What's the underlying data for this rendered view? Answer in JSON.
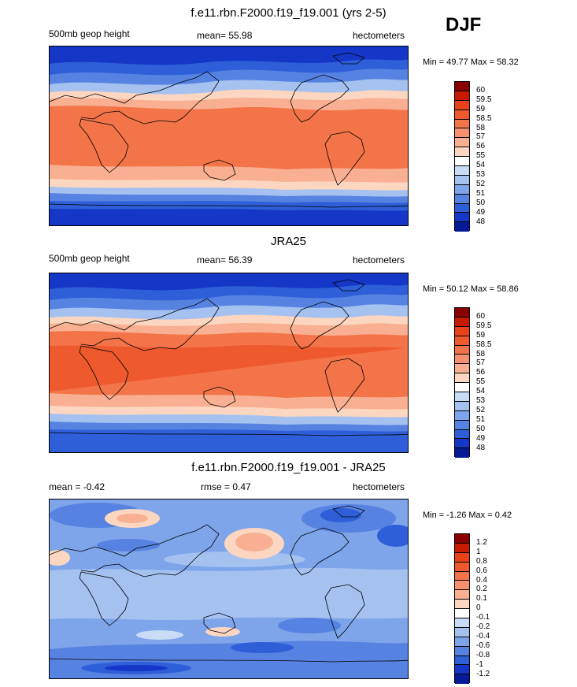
{
  "season": "DJF",
  "panels": [
    {
      "id": "model",
      "title": "f.e11.rbn.F2000.f19_f19.001 (yrs 2-5)",
      "left_label": "500mb geop height",
      "center_label": "mean=  55.98",
      "right_label": "hectometers",
      "minmax": "Min =  49.77 Max =  58.32",
      "colorbar_ticks": [
        "60",
        "59.5",
        "59",
        "58.5",
        "58",
        "57",
        "56",
        "55",
        "54",
        "53",
        "52",
        "51",
        "50",
        "49",
        "48"
      ],
      "colors": [
        "#8a0000",
        "#c81a00",
        "#e8421a",
        "#ee5a2e",
        "#f4744a",
        "#f79070",
        "#f9b092",
        "#fcd6c0",
        "#ffffff",
        "#c9dcf6",
        "#a4c1f0",
        "#7ea4ea",
        "#5683e2",
        "#2e5fd8",
        "#1437c8",
        "#061a98"
      ]
    },
    {
      "id": "obs",
      "title": "JRA25",
      "left_label": "500mb geop height",
      "center_label": "mean=  56.39",
      "right_label": "hectometers",
      "minmax": "Min =  50.12 Max =  58.86",
      "colorbar_ticks": [
        "60",
        "59.5",
        "59",
        "58.5",
        "58",
        "57",
        "56",
        "55",
        "54",
        "53",
        "52",
        "51",
        "50",
        "49",
        "48"
      ],
      "colors": [
        "#8a0000",
        "#c81a00",
        "#e8421a",
        "#ee5a2e",
        "#f4744a",
        "#f79070",
        "#f9b092",
        "#fcd6c0",
        "#ffffff",
        "#c9dcf6",
        "#a4c1f0",
        "#7ea4ea",
        "#5683e2",
        "#2e5fd8",
        "#1437c8",
        "#061a98"
      ]
    },
    {
      "id": "diff",
      "title": "f.e11.rbn.F2000.f19_f19.001 - JRA25",
      "left_label": "mean =  -0.42",
      "center_label": "rmse =   0.47",
      "right_label": "hectometers",
      "minmax": "Min =  -1.26 Max =   0.42",
      "colorbar_ticks": [
        "1.2",
        "1",
        "0.8",
        "0.6",
        "0.4",
        "0.2",
        "0.1",
        "0",
        "-0.1",
        "-0.2",
        "-0.4",
        "-0.6",
        "-0.8",
        "-1",
        "-1.2"
      ],
      "colors": [
        "#8a0000",
        "#c81a00",
        "#e8421a",
        "#ee5a2e",
        "#f4744a",
        "#f79070",
        "#f9b092",
        "#fcd6c0",
        "#ffffff",
        "#c9dcf6",
        "#a4c1f0",
        "#7ea4ea",
        "#5683e2",
        "#2e5fd8",
        "#1437c8",
        "#061a98"
      ]
    }
  ]
}
